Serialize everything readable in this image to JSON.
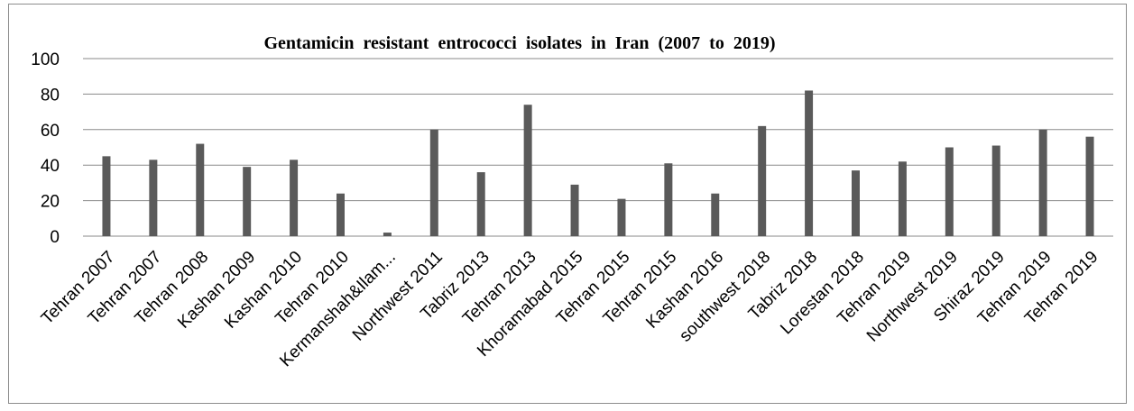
{
  "chart_data": {
    "type": "bar",
    "title": "Gentamicin  resistant  entrococci  isolates  in  Iran  (2007  to  2019)",
    "xlabel": "",
    "ylabel": "",
    "ylim": [
      0,
      100
    ],
    "yticks": [
      "0",
      "20",
      "40",
      "60",
      "80",
      "100"
    ],
    "grid": true,
    "legend": "none",
    "bar_color": "#5a5a5a",
    "categories": [
      "Tehran 2007",
      "Tehran 2007",
      "Tehran 2008",
      "Kashan 2009",
      "Kashan 2010",
      "Tehran 2010",
      "Kermanshah&Ilam...",
      "Northwest 2011",
      "Tabriz 2013",
      "Tehran 2013",
      "Khoramabad 2015",
      "Tehran 2015",
      "Tehran 2015",
      "Kashan 2016",
      "southwest 2018",
      "Tabriz 2018",
      "Lorestan 2018",
      "Tehran 2019",
      "Northwest 2019",
      "Shiraz 2019",
      "Tehran 2019",
      "Tehran 2019"
    ],
    "values": [
      45,
      43,
      52,
      39,
      43,
      24,
      2,
      60,
      36,
      74,
      29,
      21,
      41,
      24,
      62,
      82,
      37,
      42,
      50,
      51,
      60,
      56
    ]
  }
}
